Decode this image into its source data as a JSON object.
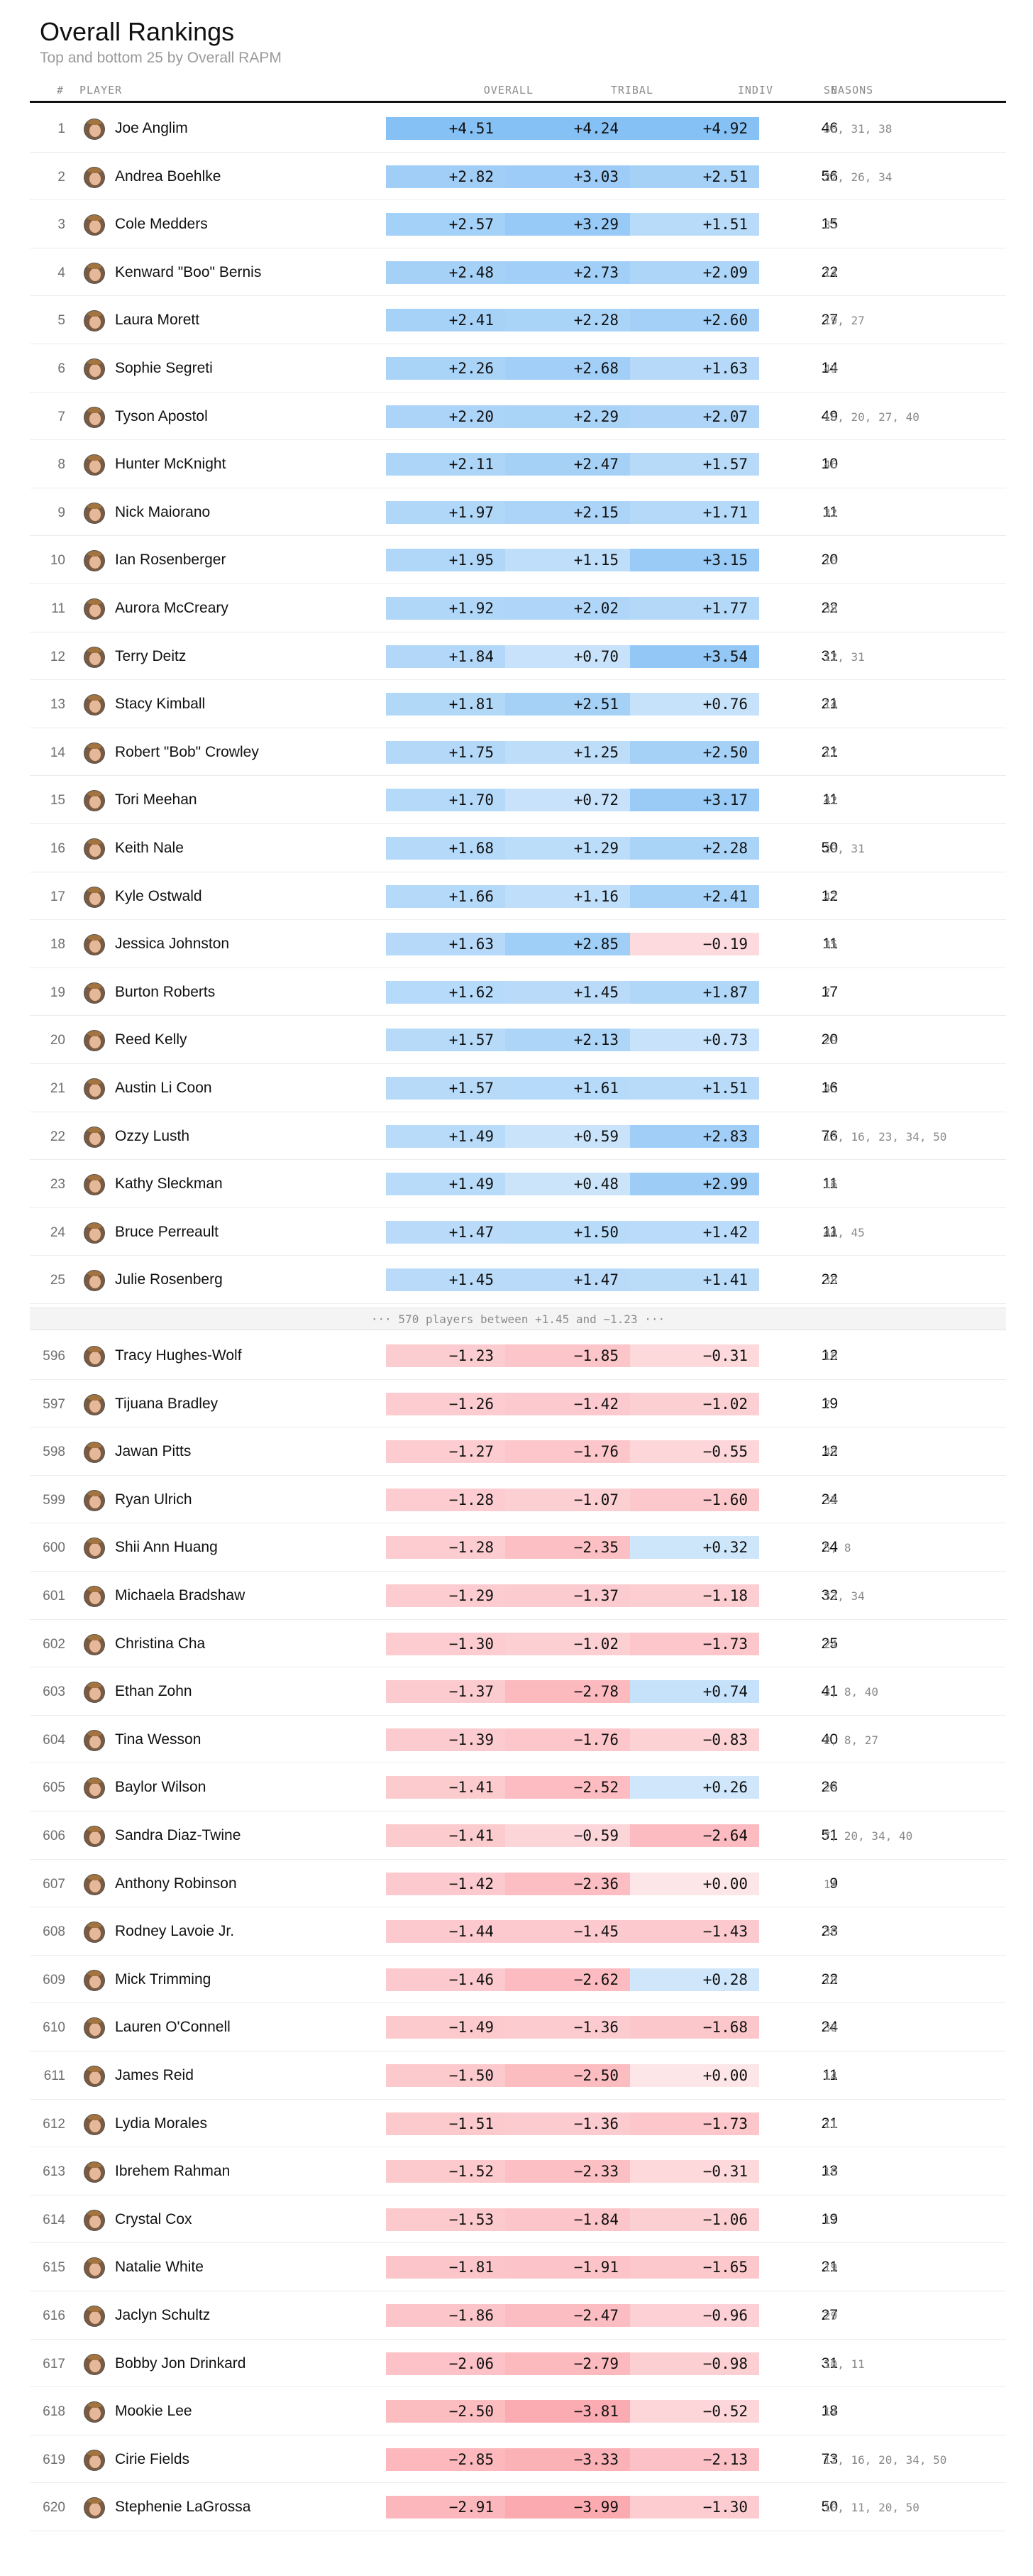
{
  "header": {
    "title": "Overall Rankings",
    "subtitle": "Top and bottom 25 by Overall RAPM",
    "col_rank": "#",
    "col_player": "PLAYER",
    "col_overall": "OVERALL",
    "col_tribal": "TRIBAL",
    "col_indiv": "INDIV",
    "col_n": "N",
    "col_seasons": "SEASONS"
  },
  "gap_label": "···  570 players between +1.45 and −1.23  ···",
  "colors": {
    "pos_max": "#86c1f5",
    "pos_light": "#e2f0fc",
    "neg_max": "#fba7ad",
    "neg_light": "#fde6e8",
    "zero": "#fde6e8"
  },
  "chart_data": {
    "type": "table",
    "title": "Overall Rankings",
    "subtitle": "Top and bottom 25 by Overall RAPM",
    "columns": [
      "#",
      "PLAYER",
      "OVERALL",
      "TRIBAL",
      "INDIV",
      "N",
      "SEASONS"
    ],
    "top": [
      {
        "rank": "1",
        "player": "Joe Anglim",
        "overall": 4.51,
        "tribal": 4.24,
        "indiv": 4.92,
        "n": "46",
        "seasons": "30, 31, 38"
      },
      {
        "rank": "2",
        "player": "Andrea Boehlke",
        "overall": 2.82,
        "tribal": 3.03,
        "indiv": 2.51,
        "n": "56",
        "seasons": "22, 26, 34"
      },
      {
        "rank": "3",
        "player": "Cole Medders",
        "overall": 2.57,
        "tribal": 3.29,
        "indiv": 1.51,
        "n": "15",
        "seasons": "35"
      },
      {
        "rank": "4",
        "player": "Kenward \"Boo\" Bernis",
        "overall": 2.48,
        "tribal": 2.73,
        "indiv": 2.09,
        "n": "22",
        "seasons": "14"
      },
      {
        "rank": "5",
        "player": "Laura Morett",
        "overall": 2.41,
        "tribal": 2.28,
        "indiv": 2.6,
        "n": "27",
        "seasons": "19, 27"
      },
      {
        "rank": "6",
        "player": "Sophie Segreti",
        "overall": 2.26,
        "tribal": 2.68,
        "indiv": 1.63,
        "n": "14",
        "seasons": "49"
      },
      {
        "rank": "7",
        "player": "Tyson Apostol",
        "overall": 2.2,
        "tribal": 2.29,
        "indiv": 2.07,
        "n": "49",
        "seasons": "18, 20, 27, 40"
      },
      {
        "rank": "8",
        "player": "Hunter McKnight",
        "overall": 2.11,
        "tribal": 2.47,
        "indiv": 1.57,
        "n": "10",
        "seasons": "46"
      },
      {
        "rank": "9",
        "player": "Nick Maiorano",
        "overall": 1.97,
        "tribal": 2.15,
        "indiv": 1.71,
        "n": "11",
        "seasons": "32"
      },
      {
        "rank": "10",
        "player": "Ian Rosenberger",
        "overall": 1.95,
        "tribal": 1.15,
        "indiv": 3.15,
        "n": "20",
        "seasons": "10"
      },
      {
        "rank": "11",
        "player": "Aurora McCreary",
        "overall": 1.92,
        "tribal": 2.02,
        "indiv": 1.77,
        "n": "22",
        "seasons": "38"
      },
      {
        "rank": "12",
        "player": "Terry Deitz",
        "overall": 1.84,
        "tribal": 0.7,
        "indiv": 3.54,
        "n": "31",
        "seasons": "12, 31"
      },
      {
        "rank": "13",
        "player": "Stacy Kimball",
        "overall": 1.81,
        "tribal": 2.51,
        "indiv": 0.76,
        "n": "21",
        "seasons": "14"
      },
      {
        "rank": "14",
        "player": "Robert \"Bob\" Crowley",
        "overall": 1.75,
        "tribal": 1.25,
        "indiv": 2.5,
        "n": "21",
        "seasons": "17"
      },
      {
        "rank": "15",
        "player": "Tori Meehan",
        "overall": 1.7,
        "tribal": 0.72,
        "indiv": 3.17,
        "n": "11",
        "seasons": "42"
      },
      {
        "rank": "16",
        "player": "Keith Nale",
        "overall": 1.68,
        "tribal": 1.29,
        "indiv": 2.28,
        "n": "50",
        "seasons": "29, 31"
      },
      {
        "rank": "17",
        "player": "Kyle Ostwald",
        "overall": 1.66,
        "tribal": 1.16,
        "indiv": 2.41,
        "n": "12",
        "seasons": "47"
      },
      {
        "rank": "18",
        "player": "Jessica Johnston",
        "overall": 1.63,
        "tribal": 2.85,
        "indiv": -0.19,
        "n": "11",
        "seasons": "35"
      },
      {
        "rank": "19",
        "player": "Burton Roberts",
        "overall": 1.62,
        "tribal": 1.45,
        "indiv": 1.87,
        "n": "17",
        "seasons": "7"
      },
      {
        "rank": "20",
        "player": "Reed Kelly",
        "overall": 1.57,
        "tribal": 2.13,
        "indiv": 0.73,
        "n": "20",
        "seasons": "29"
      },
      {
        "rank": "21",
        "player": "Austin Li Coon",
        "overall": 1.57,
        "tribal": 1.61,
        "indiv": 1.51,
        "n": "16",
        "seasons": "45"
      },
      {
        "rank": "22",
        "player": "Ozzy Lusth",
        "overall": 1.49,
        "tribal": 0.59,
        "indiv": 2.83,
        "n": "76",
        "seasons": "13, 16, 23, 34, 50"
      },
      {
        "rank": "23",
        "player": "Kathy Sleckman",
        "overall": 1.49,
        "tribal": 0.48,
        "indiv": 2.99,
        "n": "11",
        "seasons": "16"
      },
      {
        "rank": "24",
        "player": "Bruce Perreault",
        "overall": 1.47,
        "tribal": 1.5,
        "indiv": 1.42,
        "n": "11",
        "seasons": "44, 45"
      },
      {
        "rank": "25",
        "player": "Julie Rosenberg",
        "overall": 1.45,
        "tribal": 1.47,
        "indiv": 1.41,
        "n": "22",
        "seasons": "38"
      }
    ],
    "bottom": [
      {
        "rank": "596",
        "player": "Tracy Hughes-Wolf",
        "overall": -1.23,
        "tribal": -1.85,
        "indiv": -0.31,
        "n": "12",
        "seasons": "16"
      },
      {
        "rank": "597",
        "player": "Tijuana Bradley",
        "overall": -1.26,
        "tribal": -1.42,
        "indiv": -1.02,
        "n": "19",
        "seasons": "7"
      },
      {
        "rank": "598",
        "player": "Jawan Pitts",
        "overall": -1.27,
        "tribal": -1.76,
        "indiv": -0.55,
        "n": "12",
        "seasons": "49"
      },
      {
        "rank": "599",
        "player": "Ryan Ulrich",
        "overall": -1.28,
        "tribal": -1.07,
        "indiv": -1.6,
        "n": "24",
        "seasons": "35"
      },
      {
        "rank": "600",
        "player": "Shii Ann Huang",
        "overall": -1.28,
        "tribal": -2.35,
        "indiv": 0.32,
        "n": "24",
        "seasons": "5, 8"
      },
      {
        "rank": "601",
        "player": "Michaela Bradshaw",
        "overall": -1.29,
        "tribal": -1.37,
        "indiv": -1.18,
        "n": "32",
        "seasons": "33, 34"
      },
      {
        "rank": "602",
        "player": "Christina Cha",
        "overall": -1.3,
        "tribal": -1.02,
        "indiv": -1.73,
        "n": "25",
        "seasons": "24"
      },
      {
        "rank": "603",
        "player": "Ethan Zohn",
        "overall": -1.37,
        "tribal": -2.78,
        "indiv": 0.74,
        "n": "41",
        "seasons": "3, 8, 40"
      },
      {
        "rank": "604",
        "player": "Tina Wesson",
        "overall": -1.39,
        "tribal": -1.76,
        "indiv": -0.83,
        "n": "40",
        "seasons": "2, 8, 27"
      },
      {
        "rank": "605",
        "player": "Baylor Wilson",
        "overall": -1.41,
        "tribal": -2.52,
        "indiv": 0.26,
        "n": "26",
        "seasons": "29"
      },
      {
        "rank": "606",
        "player": "Sandra Diaz-Twine",
        "overall": -1.41,
        "tribal": -0.59,
        "indiv": -2.64,
        "n": "51",
        "seasons": "7, 20, 34, 40"
      },
      {
        "rank": "607",
        "player": "Anthony Robinson",
        "overall": -1.42,
        "tribal": -2.36,
        "indiv": 0.0,
        "n": "9",
        "seasons": "14"
      },
      {
        "rank": "608",
        "player": "Rodney Lavoie Jr.",
        "overall": -1.44,
        "tribal": -1.45,
        "indiv": -1.43,
        "n": "23",
        "seasons": "30"
      },
      {
        "rank": "609",
        "player": "Mick Trimming",
        "overall": -1.46,
        "tribal": -2.62,
        "indiv": 0.28,
        "n": "22",
        "seasons": "19"
      },
      {
        "rank": "610",
        "player": "Lauren O'Connell",
        "overall": -1.49,
        "tribal": -1.36,
        "indiv": -1.68,
        "n": "24",
        "seasons": "38"
      },
      {
        "rank": "611",
        "player": "James Reid",
        "overall": -1.5,
        "tribal": -2.5,
        "indiv": 0.0,
        "n": "11",
        "seasons": "14"
      },
      {
        "rank": "612",
        "player": "Lydia Morales",
        "overall": -1.51,
        "tribal": -1.36,
        "indiv": -1.73,
        "n": "21",
        "seasons": "11"
      },
      {
        "rank": "613",
        "player": "Ibrehem Rahman",
        "overall": -1.52,
        "tribal": -2.33,
        "indiv": -0.31,
        "n": "13",
        "seasons": "10"
      },
      {
        "rank": "614",
        "player": "Crystal Cox",
        "overall": -1.53,
        "tribal": -1.84,
        "indiv": -1.06,
        "n": "19",
        "seasons": "17"
      },
      {
        "rank": "615",
        "player": "Natalie White",
        "overall": -1.81,
        "tribal": -1.91,
        "indiv": -1.65,
        "n": "21",
        "seasons": "19"
      },
      {
        "rank": "616",
        "player": "Jaclyn Schultz",
        "overall": -1.86,
        "tribal": -2.47,
        "indiv": -0.96,
        "n": "27",
        "seasons": "29"
      },
      {
        "rank": "617",
        "player": "Bobby Jon Drinkard",
        "overall": -2.06,
        "tribal": -2.79,
        "indiv": -0.98,
        "n": "31",
        "seasons": "10, 11"
      },
      {
        "rank": "618",
        "player": "Mookie Lee",
        "overall": -2.5,
        "tribal": -3.81,
        "indiv": -0.52,
        "n": "18",
        "seasons": "14"
      },
      {
        "rank": "619",
        "player": "Cirie Fields",
        "overall": -2.85,
        "tribal": -3.33,
        "indiv": -2.13,
        "n": "73",
        "seasons": "12, 16, 20, 34, 50"
      },
      {
        "rank": "620",
        "player": "Stephenie LaGrossa",
        "overall": -2.91,
        "tribal": -3.99,
        "indiv": -1.3,
        "n": "50",
        "seasons": "10, 11, 20, 50"
      }
    ]
  }
}
